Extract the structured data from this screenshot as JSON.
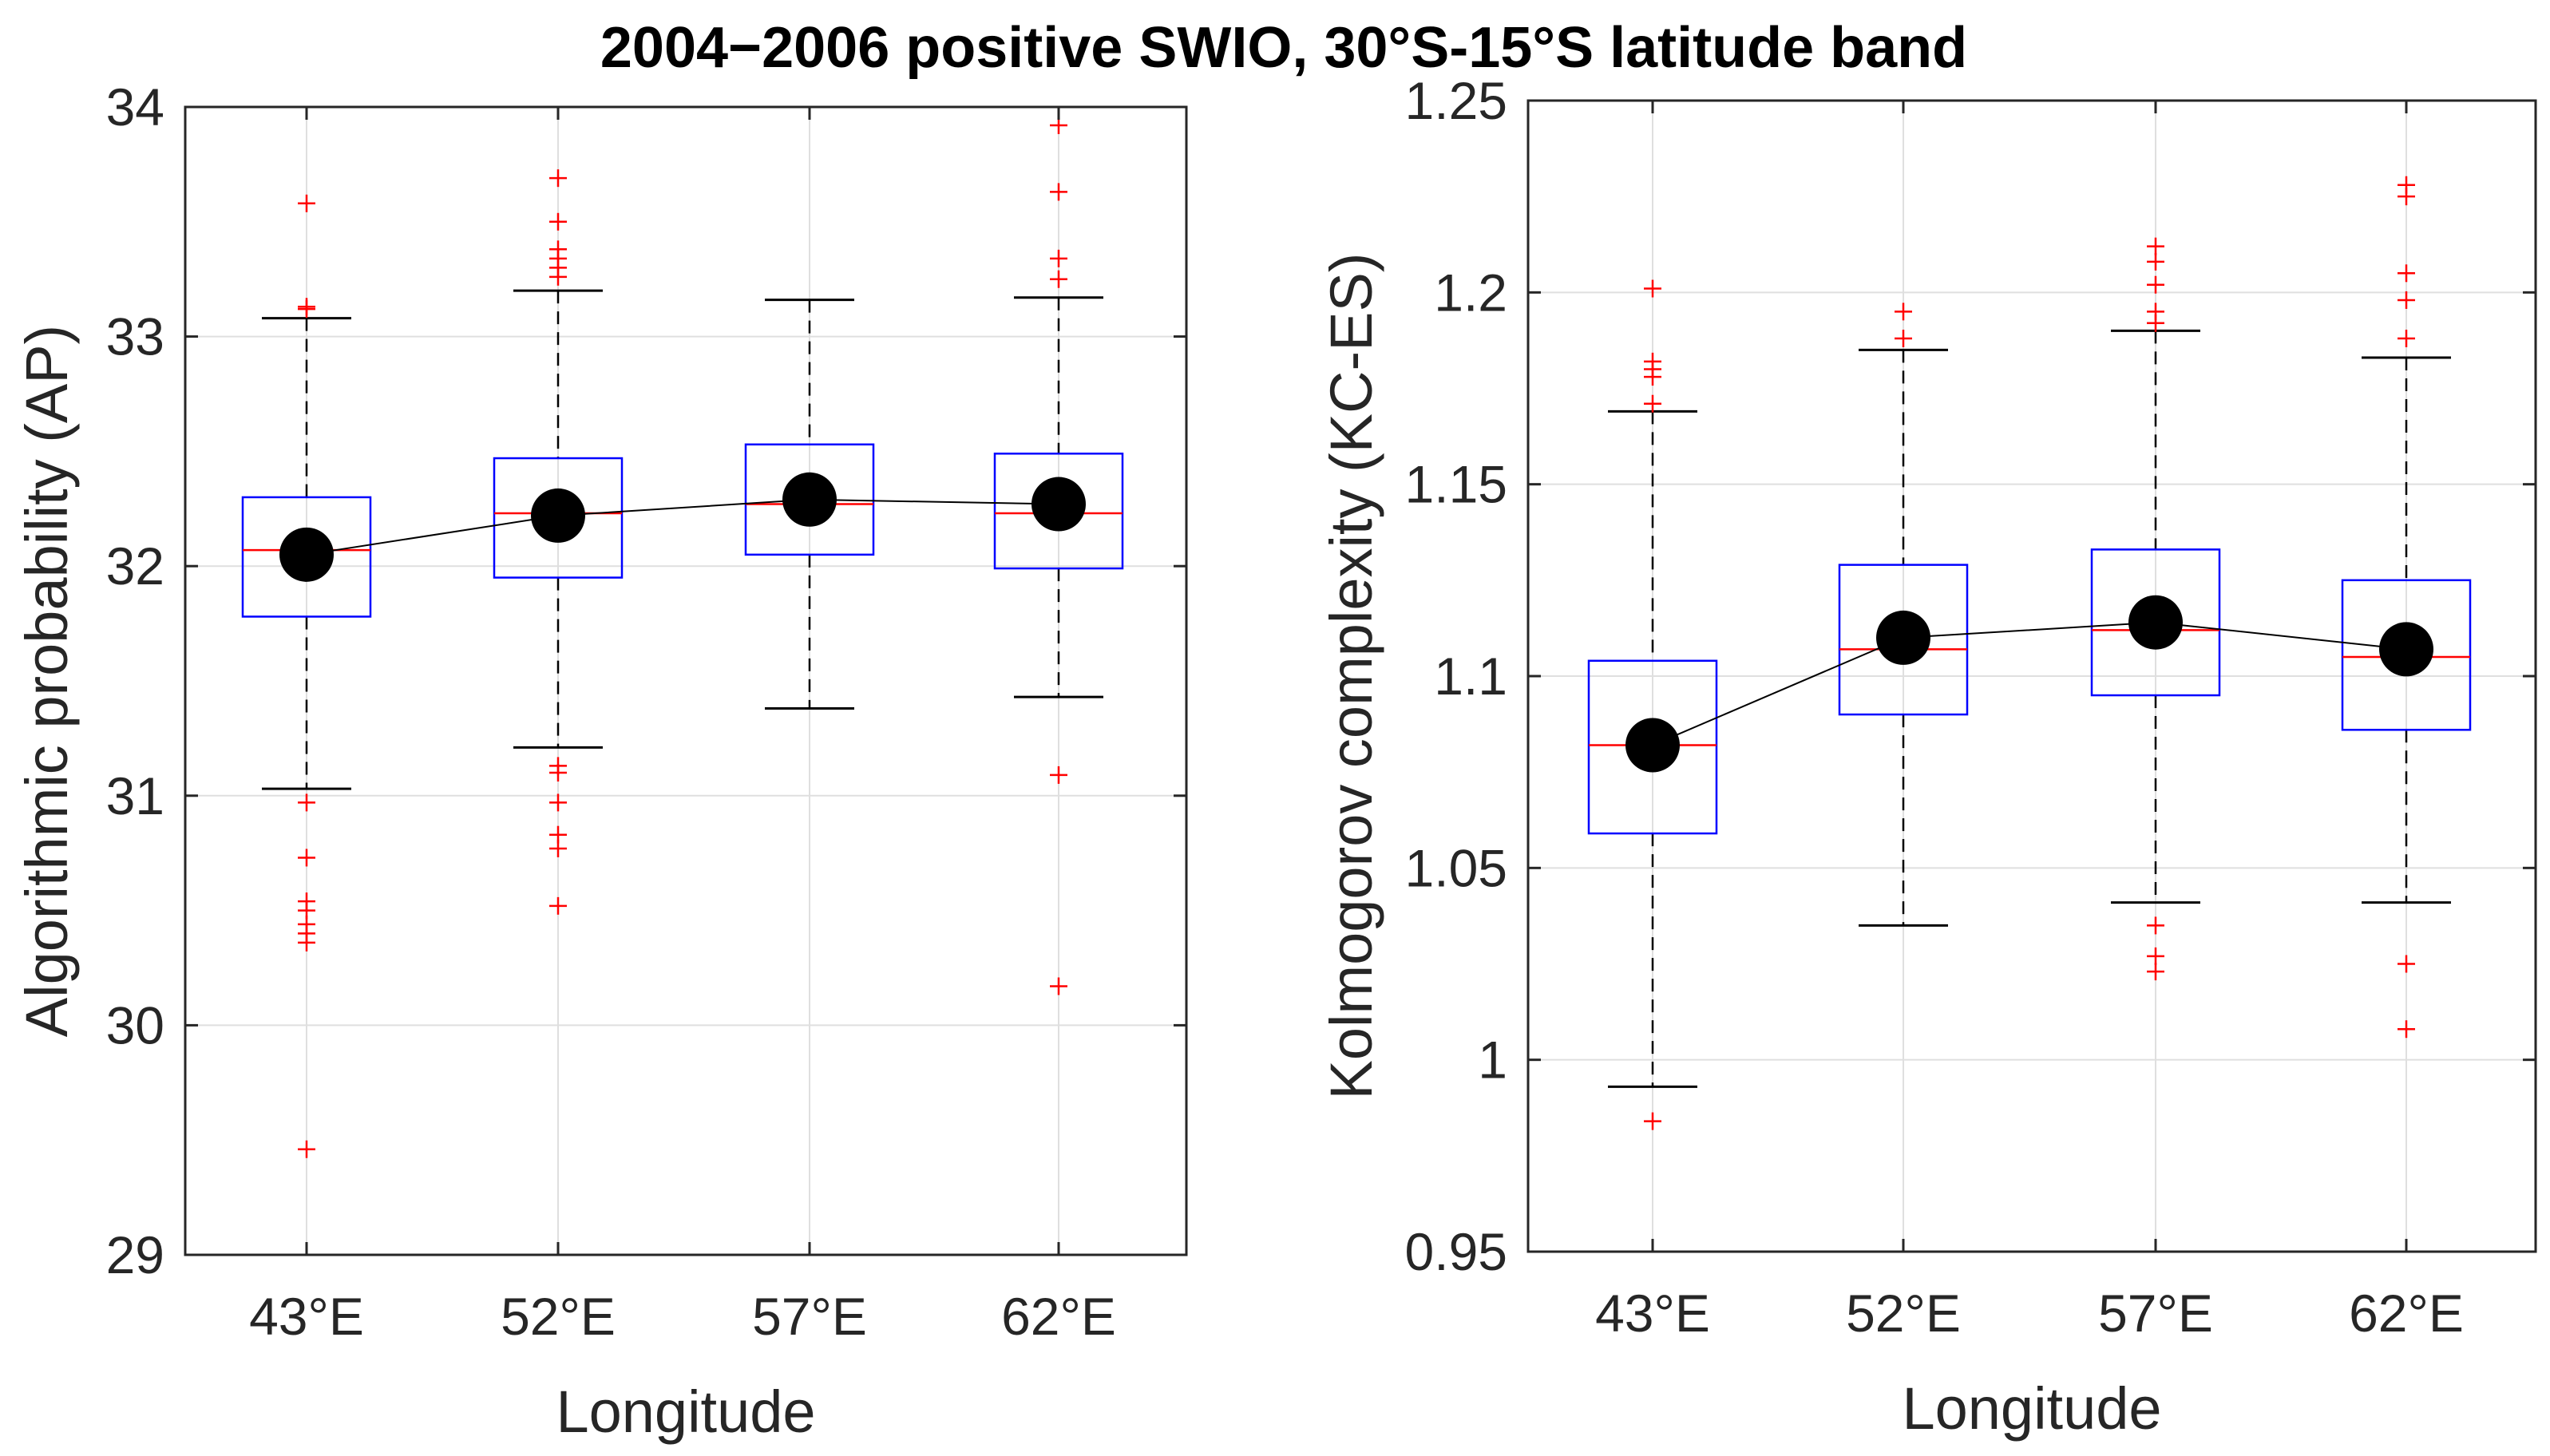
{
  "figure_title": "2004−2006 positive SWIO, 30°S-15°S latitude band",
  "chart_data": [
    {
      "type": "box",
      "xlabel": "Longitude",
      "ylabel": "Algorithmic probability (AP)",
      "categories": [
        "43°E",
        "52°E",
        "57°E",
        "62°E"
      ],
      "ylim": [
        29,
        34
      ],
      "yticks": [
        29,
        30,
        31,
        32,
        33,
        34
      ],
      "ytick_labels": [
        "29",
        "30",
        "31",
        "32",
        "33",
        "34"
      ],
      "grid": true,
      "boxes": [
        {
          "q1": 31.78,
          "median": 32.07,
          "q3": 32.3,
          "whisker_low": 31.03,
          "whisker_high": 33.08,
          "outliers": [
            33.58,
            33.13,
            33.12,
            30.97,
            30.73,
            30.54,
            30.5,
            30.44,
            30.4,
            30.36,
            29.46
          ]
        },
        {
          "q1": 31.95,
          "median": 32.23,
          "q3": 32.47,
          "whisker_low": 31.21,
          "whisker_high": 33.2,
          "outliers": [
            33.69,
            33.5,
            33.38,
            33.34,
            33.3,
            33.26,
            31.13,
            31.1,
            30.97,
            30.83,
            30.77,
            30.52
          ]
        },
        {
          "q1": 32.05,
          "median": 32.27,
          "q3": 32.53,
          "whisker_low": 31.38,
          "whisker_high": 33.16,
          "outliers": []
        },
        {
          "q1": 31.99,
          "median": 32.23,
          "q3": 32.49,
          "whisker_low": 31.43,
          "whisker_high": 33.17,
          "outliers": [
            33.92,
            33.63,
            33.34,
            33.25,
            31.09,
            30.17
          ]
        }
      ],
      "mean_line": [
        32.05,
        32.22,
        32.29,
        32.27
      ]
    },
    {
      "type": "box",
      "xlabel": "Longitude",
      "ylabel": "Kolmogorov complexity (KC-ES)",
      "categories": [
        "43°E",
        "52°E",
        "57°E",
        "62°E"
      ],
      "ylim": [
        0.95,
        1.25
      ],
      "yticks": [
        0.95,
        1.0,
        1.05,
        1.1,
        1.15,
        1.2,
        1.25
      ],
      "ytick_labels": [
        "0.95",
        "1",
        "1.05",
        "1.1",
        "1.15",
        "1.2",
        "1.25"
      ],
      "grid": true,
      "boxes": [
        {
          "q1": 1.059,
          "median": 1.082,
          "q3": 1.104,
          "whisker_low": 0.993,
          "whisker_high": 1.169,
          "outliers": [
            1.201,
            1.182,
            1.18,
            1.178,
            1.171,
            0.984
          ]
        },
        {
          "q1": 1.09,
          "median": 1.107,
          "q3": 1.129,
          "whisker_low": 1.035,
          "whisker_high": 1.185,
          "outliers": [
            1.195,
            1.188
          ]
        },
        {
          "q1": 1.095,
          "median": 1.112,
          "q3": 1.133,
          "whisker_low": 1.041,
          "whisker_high": 1.19,
          "outliers": [
            1.212,
            1.208,
            1.202,
            1.195,
            1.192,
            1.035,
            1.027,
            1.023
          ]
        },
        {
          "q1": 1.086,
          "median": 1.105,
          "q3": 1.125,
          "whisker_low": 1.041,
          "whisker_high": 1.183,
          "outliers": [
            1.228,
            1.225,
            1.205,
            1.198,
            1.188,
            1.025,
            1.008
          ]
        }
      ],
      "mean_line": [
        1.082,
        1.11,
        1.114,
        1.107
      ]
    }
  ],
  "colors": {
    "box": "#0000ff",
    "median": "#ff0000",
    "outlier": "#ff0000",
    "whisker": "#000000",
    "mean_marker": "#000000",
    "grid": "#dfdfdf",
    "axis": "#262626"
  }
}
